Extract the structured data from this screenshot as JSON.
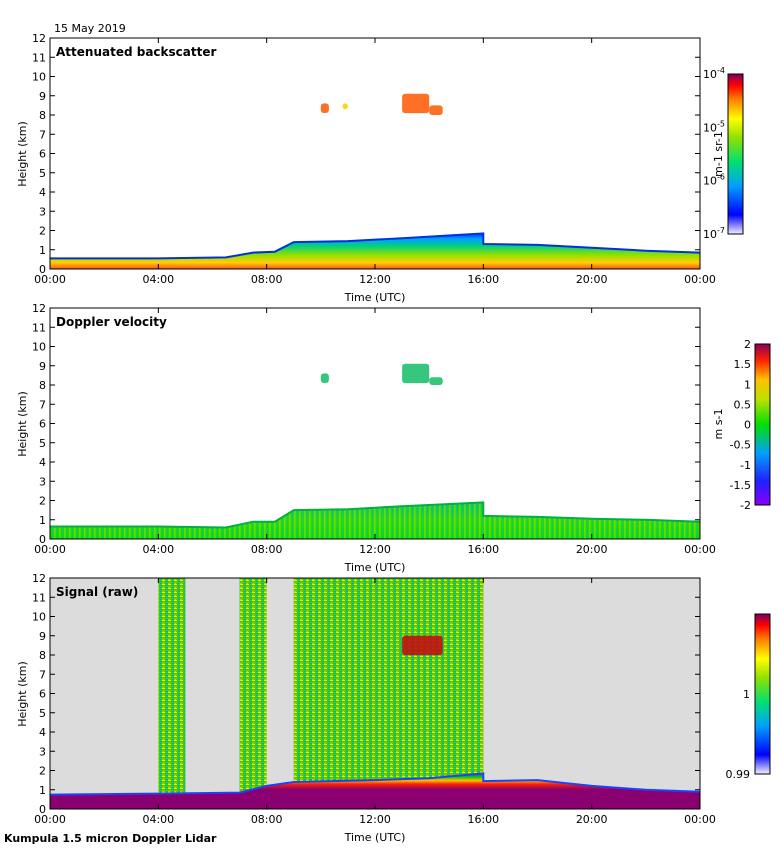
{
  "date_label": "15 May 2019",
  "footer": "Kumpula 1.5 micron Doppler Lidar",
  "colors": {
    "no_data": "#dcdcdc",
    "axes": "#000000"
  },
  "chart_data": [
    {
      "type": "heatmap",
      "title": "Attenuated backscatter",
      "xlabel": "Time (UTC)",
      "ylabel": "Height (km)",
      "xticks": [
        "00:00",
        "04:00",
        "08:00",
        "12:00",
        "16:00",
        "20:00",
        "00:00"
      ],
      "yticks": [
        "0",
        "1",
        "2",
        "3",
        "4",
        "5",
        "6",
        "7",
        "8",
        "9",
        "10",
        "11",
        "12"
      ],
      "xlim": [
        0,
        24
      ],
      "ylim": [
        0,
        12
      ],
      "colorbar": {
        "scale": "log",
        "ticks": [
          "10-7",
          "10-6",
          "10-5",
          "10-4"
        ],
        "unit": "m-1 sr-1",
        "range": [
          -7,
          -4
        ]
      },
      "boundary_layer_top_km": [
        [
          0,
          0.55
        ],
        [
          4,
          0.55
        ],
        [
          6.5,
          0.6
        ],
        [
          7.5,
          0.85
        ],
        [
          8.3,
          0.9
        ],
        [
          9,
          1.4
        ],
        [
          11,
          1.45
        ],
        [
          13,
          1.6
        ],
        [
          16,
          1.85
        ],
        [
          16,
          1.3
        ],
        [
          18,
          1.25
        ],
        [
          20,
          1.1
        ],
        [
          22,
          0.95
        ],
        [
          24,
          0.85
        ]
      ],
      "clouds": [
        {
          "t": [
            13.0,
            14.0
          ],
          "h": [
            8.1,
            9.1
          ],
          "level": 0.85
        },
        {
          "t": [
            14.0,
            14.5
          ],
          "h": [
            8.0,
            8.5
          ],
          "level": 0.85
        },
        {
          "t": [
            10.0,
            10.3
          ],
          "h": [
            8.1,
            8.6
          ],
          "level": 0.85
        },
        {
          "t": [
            10.8,
            11.0
          ],
          "h": [
            8.3,
            8.6
          ],
          "level": 0.8
        }
      ]
    },
    {
      "type": "heatmap",
      "title": "Doppler velocity",
      "xlabel": "Time (UTC)",
      "ylabel": "Height (km)",
      "xticks": [
        "00:00",
        "04:00",
        "08:00",
        "12:00",
        "16:00",
        "20:00",
        "00:00"
      ],
      "yticks": [
        "0",
        "1",
        "2",
        "3",
        "4",
        "5",
        "6",
        "7",
        "8",
        "9",
        "10",
        "11",
        "12"
      ],
      "xlim": [
        0,
        24
      ],
      "ylim": [
        0,
        12
      ],
      "colorbar": {
        "scale": "linear",
        "ticks": [
          "2",
          "1.5",
          "1",
          "0.5",
          "0",
          "-0.5",
          "-1",
          "-1.5",
          "-2"
        ],
        "unit": "m s-1",
        "range": [
          -2,
          2
        ]
      },
      "boundary_layer_top_km": [
        [
          0,
          0.65
        ],
        [
          4,
          0.65
        ],
        [
          6.5,
          0.6
        ],
        [
          7.5,
          0.9
        ],
        [
          8.3,
          0.9
        ],
        [
          9,
          1.5
        ],
        [
          11,
          1.55
        ],
        [
          13,
          1.7
        ],
        [
          16,
          1.9
        ],
        [
          16,
          1.2
        ],
        [
          18,
          1.15
        ],
        [
          20,
          1.05
        ],
        [
          22,
          1.0
        ],
        [
          24,
          0.9
        ]
      ],
      "clouds": [
        {
          "t": [
            13.0,
            14.0
          ],
          "h": [
            8.1,
            9.1
          ],
          "level": 0.55
        },
        {
          "t": [
            14.0,
            14.5
          ],
          "h": [
            8.0,
            8.4
          ],
          "level": 0.5
        },
        {
          "t": [
            10.0,
            10.3
          ],
          "h": [
            8.1,
            8.6
          ],
          "level": 0.5
        }
      ]
    },
    {
      "type": "heatmap",
      "title": "Signal (raw)",
      "xlabel": "Time (UTC)",
      "ylabel": "Height (km)",
      "xticks": [
        "00:00",
        "04:00",
        "08:00",
        "12:00",
        "16:00",
        "20:00",
        "00:00"
      ],
      "yticks": [
        "0",
        "1",
        "2",
        "3",
        "4",
        "5",
        "6",
        "7",
        "8",
        "9",
        "10",
        "11",
        "12"
      ],
      "xlim": [
        0,
        24
      ],
      "ylim": [
        0,
        12
      ],
      "colorbar": {
        "scale": "linear",
        "ticks": [
          "1",
          "0.99"
        ],
        "unit": "",
        "range": [
          0.99,
          1.01
        ]
      },
      "full_profile_periods_utc": [
        [
          4.0,
          5.0
        ],
        [
          7.0,
          8.0
        ],
        [
          9.0,
          16.0
        ]
      ],
      "boundary_layer_top_km": [
        [
          0,
          0.75
        ],
        [
          4,
          0.8
        ],
        [
          7,
          0.85
        ],
        [
          8,
          1.2
        ],
        [
          9,
          1.4
        ],
        [
          12,
          1.5
        ],
        [
          14,
          1.6
        ],
        [
          16,
          1.85
        ],
        [
          16,
          1.45
        ],
        [
          18,
          1.5
        ],
        [
          20,
          1.2
        ],
        [
          22,
          1.0
        ],
        [
          24,
          0.9
        ]
      ],
      "clouds": [
        {
          "t": [
            13.0,
            14.5
          ],
          "h": [
            8.0,
            9.0
          ],
          "level": 0.9
        }
      ]
    }
  ]
}
